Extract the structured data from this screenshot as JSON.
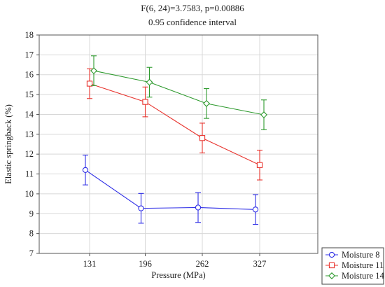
{
  "chart_data": {
    "type": "line",
    "title": "F(6, 24)=3.7583, p=0.00886",
    "subtitle": "0.95 confidence interval",
    "xlabel": "Pressure (MPa)",
    "ylabel": "Elastic springback (%)",
    "categories": [
      "131",
      "196",
      "262",
      "327"
    ],
    "ylim": [
      7,
      18
    ],
    "yticks": [
      "7",
      "8",
      "9",
      "10",
      "11",
      "12",
      "13",
      "14",
      "15",
      "16",
      "17",
      "18"
    ],
    "grid": true,
    "legend_position": "bottom-right",
    "series": [
      {
        "name": "Moisture 8",
        "color": "#2e2ee6",
        "marker": "circle",
        "values": [
          11.2,
          9.27,
          9.31,
          9.21
        ],
        "ci_lower": [
          10.45,
          8.52,
          8.56,
          8.46
        ],
        "ci_upper": [
          11.95,
          10.02,
          10.06,
          9.96
        ]
      },
      {
        "name": "Moisture 11",
        "color": "#e8342e",
        "marker": "square",
        "values": [
          15.55,
          14.63,
          12.81,
          11.45
        ],
        "ci_lower": [
          14.8,
          13.88,
          12.06,
          10.7
        ],
        "ci_upper": [
          16.3,
          15.38,
          13.56,
          12.2
        ]
      },
      {
        "name": "Moisture 14",
        "color": "#2e9a2e",
        "marker": "diamond",
        "values": [
          16.2,
          15.62,
          14.55,
          13.98
        ],
        "ci_lower": [
          15.45,
          14.87,
          13.8,
          13.23
        ],
        "ci_upper": [
          16.95,
          16.37,
          15.3,
          14.73
        ]
      }
    ]
  }
}
